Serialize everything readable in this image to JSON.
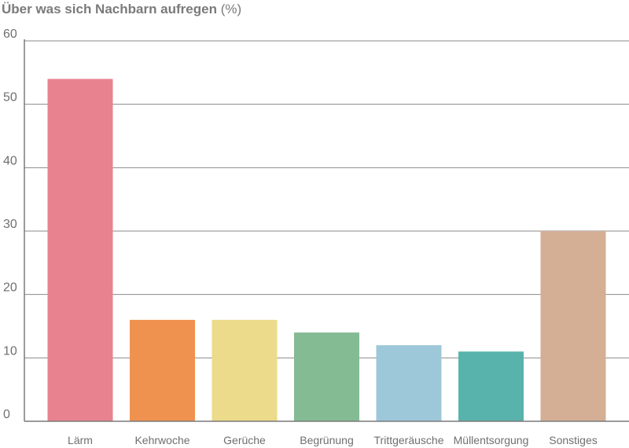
{
  "chart_data": {
    "type": "bar",
    "title": "Über was sich Nachbarn aufregen",
    "title_unit": "(%)",
    "xlabel": "",
    "ylabel": "",
    "categories": [
      "Lärm",
      "Kehrwoche",
      "Gerüche",
      "Begrünung",
      "Trittgeräusche",
      "Müllentsorgung",
      "Sonstiges"
    ],
    "values": [
      54,
      16,
      16,
      14,
      12,
      11,
      30
    ],
    "colors": [
      "#e8828f",
      "#f0924f",
      "#ecdb8a",
      "#84bb93",
      "#9dc8d9",
      "#58b3ac",
      "#d4af95"
    ],
    "ylim": [
      0,
      60
    ],
    "yticks": [
      0,
      10,
      20,
      30,
      40,
      50,
      60
    ],
    "grid": true,
    "legend": "none"
  }
}
